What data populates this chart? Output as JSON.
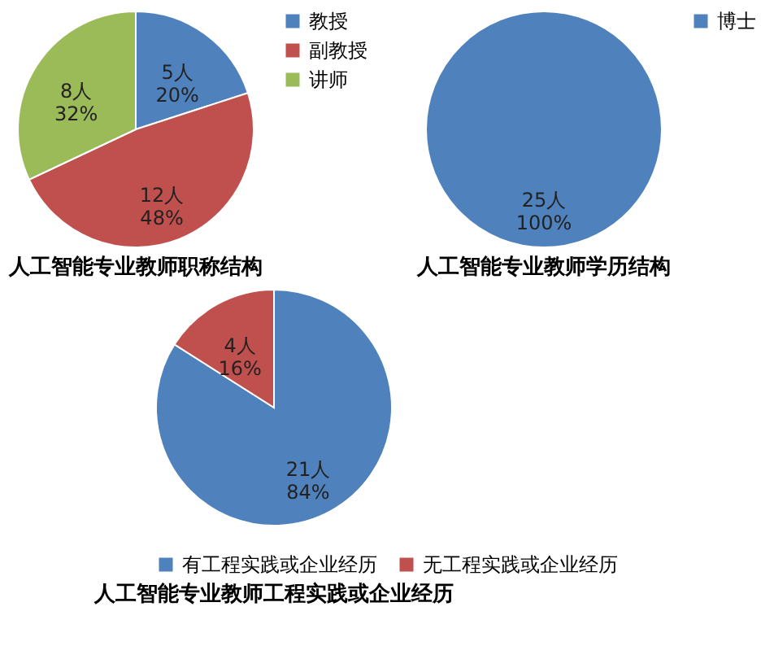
{
  "chart_data": [
    {
      "type": "pie",
      "title": "人工智能专业教师职称结构",
      "categories": [
        "教授",
        "副教授",
        "讲师"
      ],
      "values": [
        5,
        12,
        8
      ],
      "colors": [
        "#4f81bd",
        "#c0504d",
        "#9bbb59"
      ],
      "value_labels": [
        "5人\n20%",
        "12人\n48%",
        "8人\n32%"
      ],
      "legend": "right"
    },
    {
      "type": "pie",
      "title": "人工智能专业教师学历结构",
      "categories": [
        "博士"
      ],
      "values": [
        25
      ],
      "colors": [
        "#4f81bd"
      ],
      "value_labels": [
        "25人\n100%"
      ],
      "legend": "right"
    },
    {
      "type": "pie",
      "title": "人工智能专业教师工程实践或企业经历",
      "categories": [
        "有工程实践或企业经历",
        "无工程实践或企业经历"
      ],
      "values": [
        21,
        4
      ],
      "colors": [
        "#4f81bd",
        "#c0504d"
      ],
      "value_labels": [
        "21人\n84%",
        "4人\n16%"
      ],
      "legend": "bottom"
    }
  ]
}
